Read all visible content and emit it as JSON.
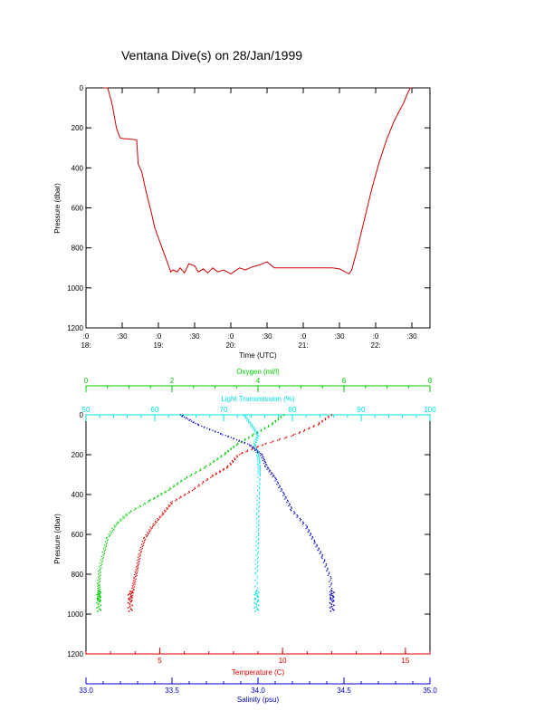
{
  "title": "Ventana Dive(s) on 28/Jan/1999",
  "colors": {
    "axis": "#000000",
    "dive_track": "#cc0000",
    "oxygen": "#00cc00",
    "light": "#00e5e5",
    "temperature": "#dd0000",
    "salinity": "#0000cc"
  },
  "chart_data": [
    {
      "type": "line",
      "xlabel": "Time (UTC)",
      "ylabel": "Pressure (dbar)",
      "ylim": [
        1200,
        0
      ],
      "yticks": [
        0,
        200,
        400,
        600,
        800,
        1000,
        1200
      ],
      "xlim": [
        18.0,
        22.75
      ],
      "xticks": [
        {
          "x": 18.0,
          "top": ":0",
          "bottom": "18:"
        },
        {
          "x": 18.5,
          "top": ":30",
          "bottom": ""
        },
        {
          "x": 19.0,
          "top": ":0",
          "bottom": "19:"
        },
        {
          "x": 19.5,
          "top": ":30",
          "bottom": ""
        },
        {
          "x": 20.0,
          "top": ":0",
          "bottom": "20:"
        },
        {
          "x": 20.5,
          "top": ":30",
          "bottom": ""
        },
        {
          "x": 21.0,
          "top": ":0",
          "bottom": "21:"
        },
        {
          "x": 21.5,
          "top": ":30",
          "bottom": ""
        },
        {
          "x": 22.0,
          "top": ":0",
          "bottom": "22:"
        },
        {
          "x": 22.5,
          "top": ":30",
          "bottom": ""
        }
      ],
      "series": [
        {
          "x": [
            18.24,
            18.3,
            18.36,
            18.4,
            18.42,
            18.47,
            18.53,
            18.57,
            18.7,
            18.72,
            18.77,
            18.83,
            18.9,
            18.95,
            19.05,
            19.12,
            19.17,
            19.2,
            19.26,
            19.3,
            19.36,
            19.42,
            19.5,
            19.55,
            19.62,
            19.68,
            19.75,
            19.82,
            19.9,
            19.95,
            20.0,
            20.06,
            20.12,
            20.2,
            20.3,
            20.4,
            20.5,
            20.6,
            20.7,
            20.8,
            20.9,
            21.0,
            21.1,
            21.2,
            21.3,
            21.4,
            21.5,
            21.58,
            21.63,
            21.67,
            21.75,
            21.85,
            21.95,
            22.05,
            22.15,
            22.25,
            22.32,
            22.38,
            22.45,
            22.48,
            22.5
          ],
          "y": [
            0,
            0,
            80,
            160,
            200,
            250,
            255,
            255,
            260,
            380,
            420,
            520,
            620,
            700,
            800,
            870,
            920,
            910,
            920,
            900,
            925,
            880,
            890,
            920,
            905,
            925,
            900,
            920,
            910,
            920,
            930,
            915,
            900,
            910,
            895,
            885,
            870,
            900,
            900,
            900,
            900,
            900,
            900,
            900,
            900,
            900,
            905,
            920,
            930,
            910,
            800,
            650,
            500,
            370,
            260,
            170,
            120,
            80,
            20,
            0,
            0
          ]
        }
      ]
    },
    {
      "type": "scatter",
      "ylabel": "Pressure (dbar)",
      "ylim": [
        1200,
        0
      ],
      "yticks": [
        0,
        200,
        400,
        600,
        800,
        1000,
        1200
      ],
      "axes": {
        "oxygen": {
          "label": "Oxygen (ml/l)",
          "lim": [
            0,
            8
          ],
          "ticks": [
            0,
            2,
            4,
            6,
            8
          ],
          "position": "top"
        },
        "light": {
          "label": "Light Transmission (%)",
          "lim": [
            50,
            100
          ],
          "ticks": [
            50,
            60,
            70,
            80,
            90,
            100
          ],
          "position": "top"
        },
        "temperature": {
          "label": "Temperature (C)",
          "lim": [
            2,
            16
          ],
          "ticks": [
            5,
            10,
            15
          ],
          "position": "bottom"
        },
        "salinity": {
          "label": "Salinity (psu)",
          "lim": [
            33.0,
            35.0
          ],
          "ticks": [
            "33.0",
            "33.5",
            "34.0",
            "34.5",
            "35.0"
          ],
          "position": "bottom"
        }
      },
      "series": [
        {
          "name": "Oxygen",
          "axis": "oxygen",
          "x": [
            4.6,
            4.3,
            3.9,
            3.5,
            3.2,
            2.8,
            2.3,
            1.9,
            1.5,
            1.0,
            0.7,
            0.5,
            0.4,
            0.32,
            0.3,
            0.3,
            0.3
          ],
          "y": [
            0,
            50,
            100,
            150,
            200,
            260,
            320,
            380,
            430,
            490,
            550,
            620,
            700,
            780,
            850,
            900,
            940
          ]
        },
        {
          "name": "Light Transmission",
          "axis": "light",
          "x": [
            73.0,
            74.0,
            75.0,
            74.5,
            75.0,
            75.2,
            75.2,
            75.1,
            75.0,
            75.0,
            74.9,
            74.8,
            74.8
          ],
          "y": [
            0,
            50,
            100,
            150,
            200,
            250,
            300,
            400,
            500,
            600,
            700,
            800,
            940
          ]
        },
        {
          "name": "Temperature",
          "axis": "temperature",
          "x": [
            12.0,
            11.4,
            10.5,
            9.2,
            8.2,
            7.8,
            7.1,
            6.3,
            5.5,
            5.1,
            4.7,
            4.4,
            4.2,
            4.1,
            4.0,
            3.9,
            3.8
          ],
          "y": [
            0,
            50,
            100,
            150,
            200,
            260,
            310,
            380,
            440,
            500,
            560,
            620,
            690,
            760,
            820,
            880,
            940
          ]
        },
        {
          "name": "Salinity",
          "axis": "salinity",
          "x": [
            33.55,
            33.65,
            33.8,
            33.95,
            34.02,
            34.05,
            34.1,
            34.15,
            34.2,
            34.28,
            34.33,
            34.38,
            34.42,
            34.43
          ],
          "y": [
            0,
            50,
            100,
            150,
            200,
            260,
            320,
            400,
            480,
            560,
            640,
            720,
            820,
            940
          ]
        }
      ]
    }
  ]
}
